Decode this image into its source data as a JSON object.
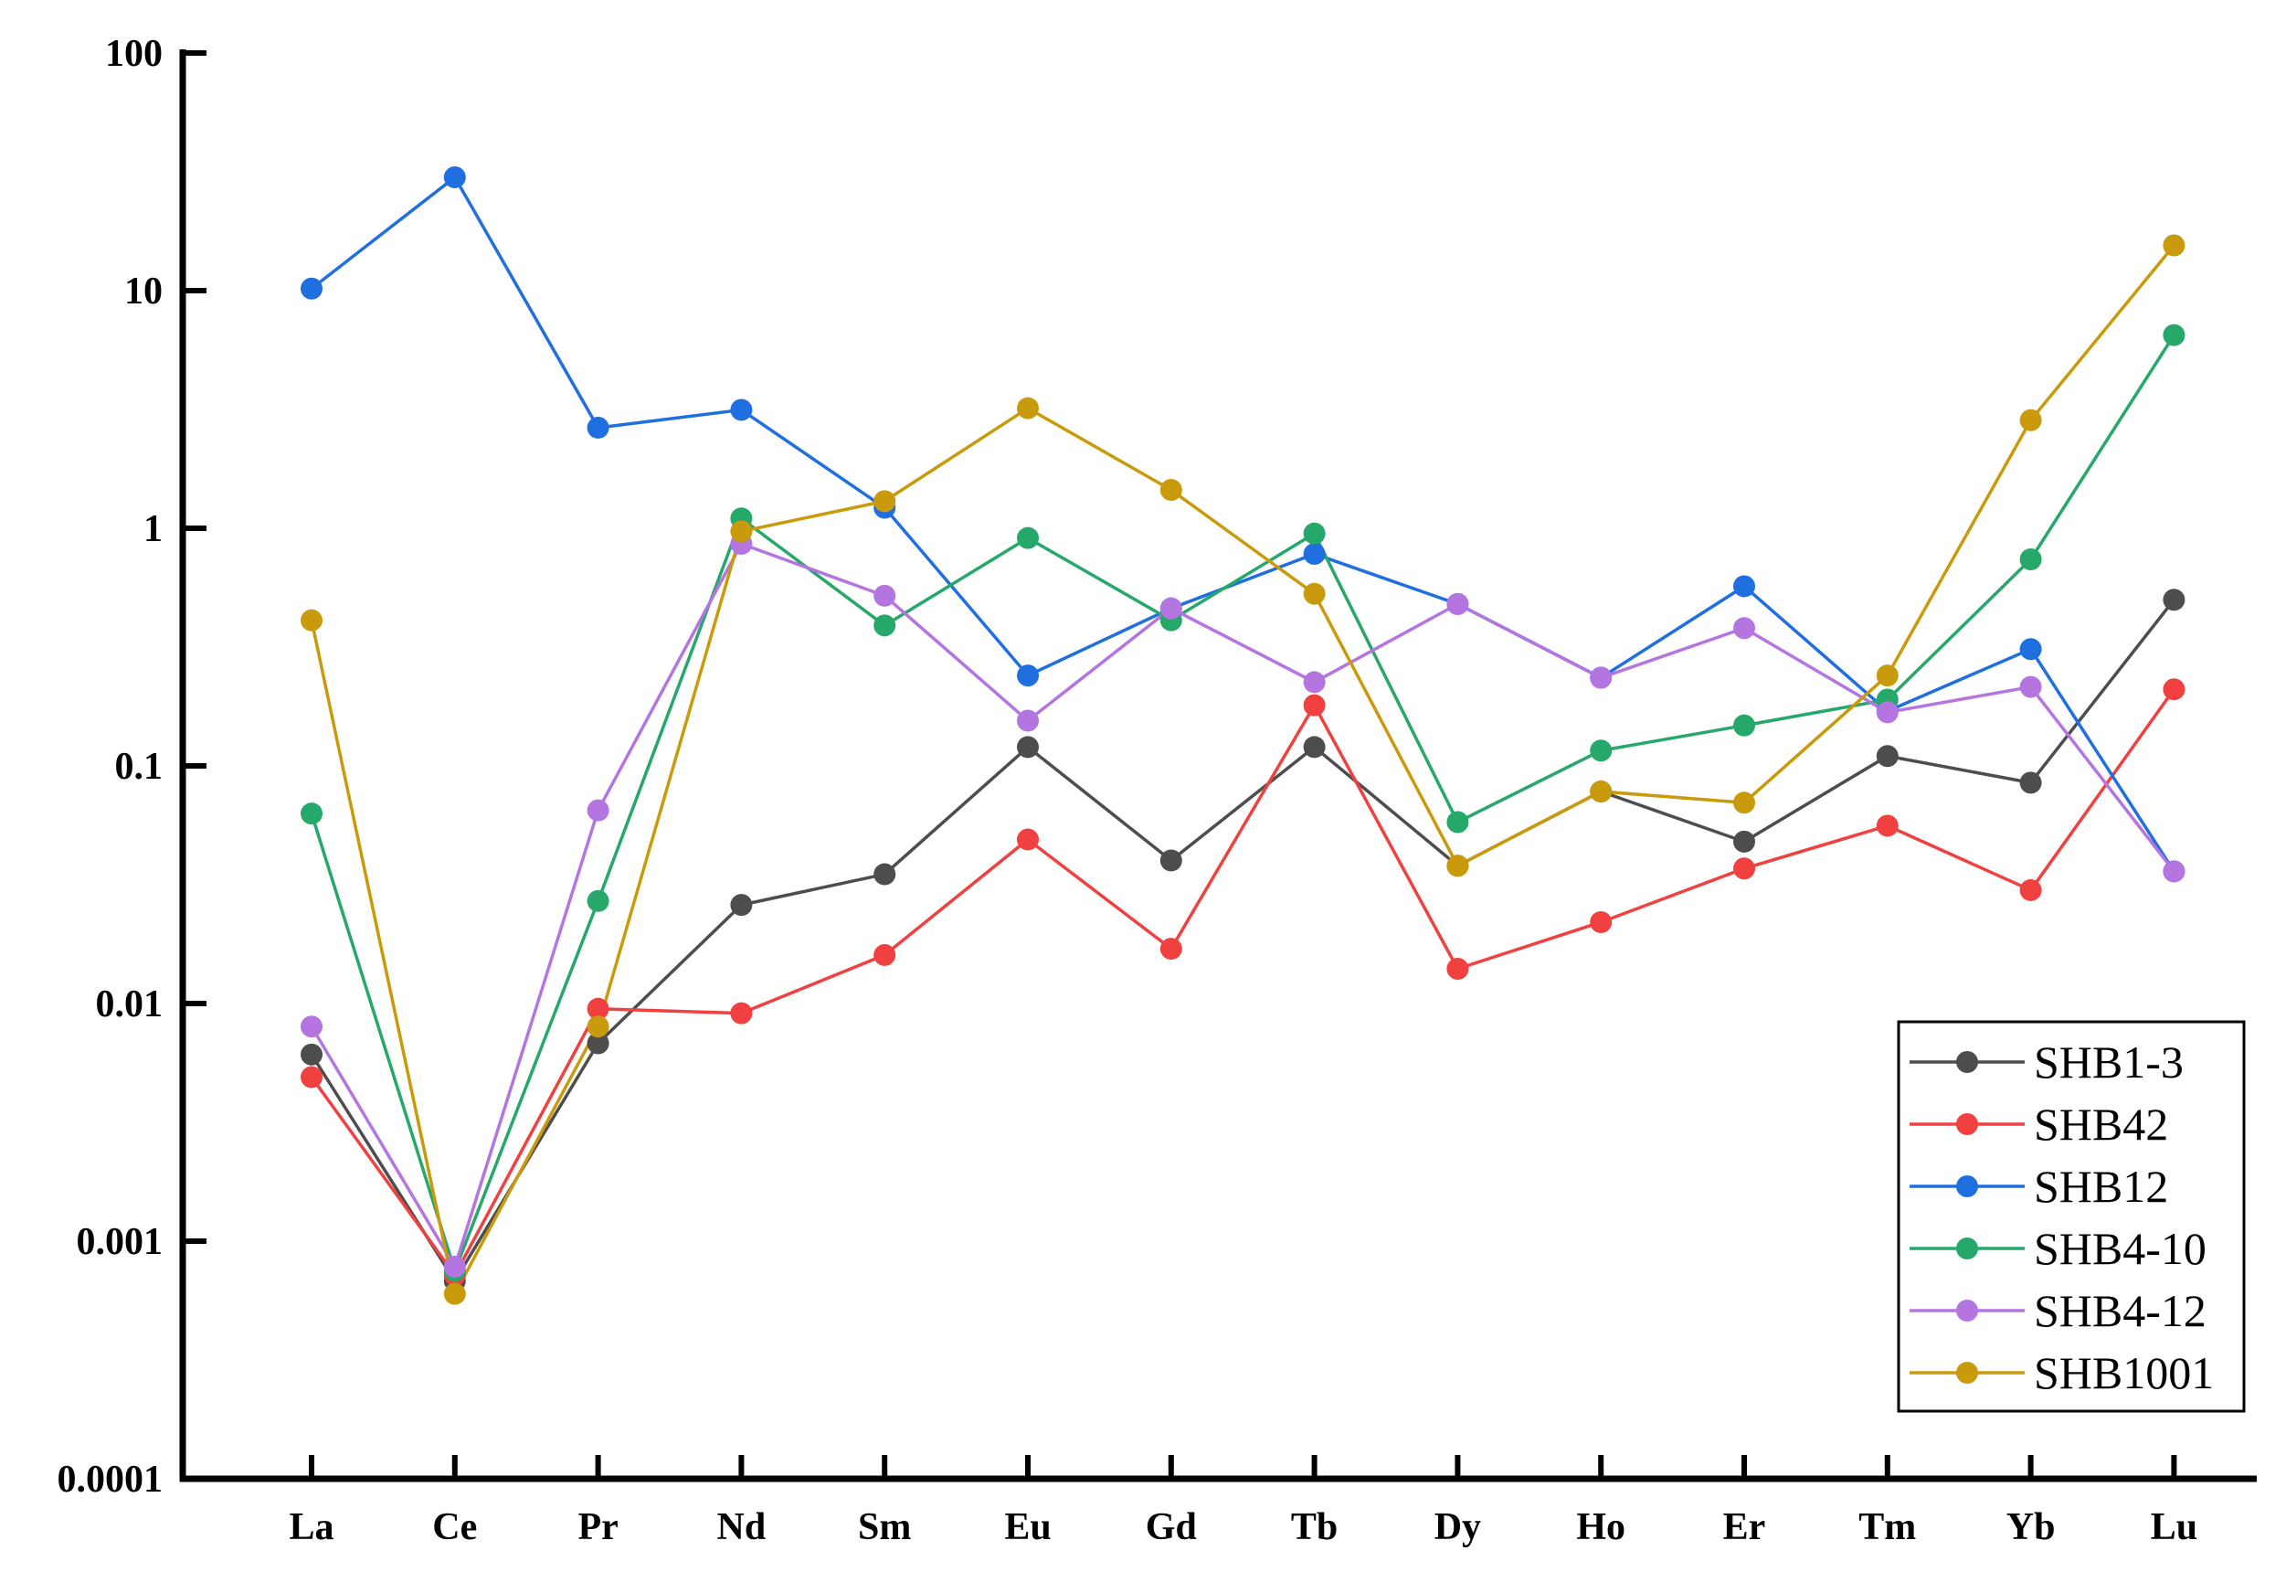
{
  "chart_data": {
    "type": "line",
    "title": "",
    "xlabel": "",
    "ylabel": "",
    "y_scale": "log",
    "ylim": [
      0.0001,
      100
    ],
    "grid": false,
    "legend_position": "bottom-right",
    "categories": [
      "La",
      "Ce",
      "Pr",
      "Nd",
      "Sm",
      "Eu",
      "Gd",
      "Tb",
      "Dy",
      "Ho",
      "Er",
      "Tm",
      "Yb",
      "Lu"
    ],
    "y_ticks": [
      {
        "value": 100,
        "label": "100"
      },
      {
        "value": 10,
        "label": "10"
      },
      {
        "value": 1,
        "label": "1"
      },
      {
        "value": 0.1,
        "label": "0.1"
      },
      {
        "value": 0.01,
        "label": "0.01"
      },
      {
        "value": 0.001,
        "label": "0.001"
      },
      {
        "value": 0.0001,
        "label": "0.0001"
      }
    ],
    "series": [
      {
        "name": "SHB1-3",
        "color": "#4d4d4d",
        "values": [
          0.0061,
          0.00068,
          0.0068,
          0.026,
          0.035,
          0.12,
          0.04,
          0.12,
          0.038,
          0.078,
          0.048,
          0.11,
          0.085,
          0.5
        ]
      },
      {
        "name": "SHB42",
        "color": "#f04040",
        "values": [
          0.0049,
          0.00072,
          0.0095,
          0.0091,
          0.016,
          0.049,
          0.017,
          0.18,
          0.014,
          0.022,
          0.037,
          0.056,
          0.03,
          0.21
        ]
      },
      {
        "name": "SHB12",
        "color": "#1f6fe0",
        "values": [
          10.2,
          30,
          2.65,
          3.15,
          1.22,
          0.24,
          0.46,
          0.78,
          0.48,
          0.235,
          0.57,
          0.17,
          0.31,
          0.036
        ]
      },
      {
        "name": "SHB4-10",
        "color": "#26a86a",
        "values": [
          0.063,
          0.00075,
          0.027,
          1.1,
          0.39,
          0.91,
          0.41,
          0.95,
          0.058,
          0.116,
          0.148,
          0.19,
          0.74,
          6.5
        ]
      },
      {
        "name": "SHB4-12",
        "color": "#b575e0",
        "values": [
          0.008,
          0.00078,
          0.065,
          0.86,
          0.52,
          0.155,
          0.46,
          0.225,
          0.48,
          0.235,
          0.38,
          0.168,
          0.215,
          0.036
        ]
      },
      {
        "name": "SHB1001",
        "color": "#c99a0c",
        "values": [
          0.41,
          0.0006,
          0.008,
          0.97,
          1.3,
          3.2,
          1.45,
          0.53,
          0.038,
          0.078,
          0.07,
          0.24,
          2.85,
          15.5
        ]
      }
    ]
  }
}
